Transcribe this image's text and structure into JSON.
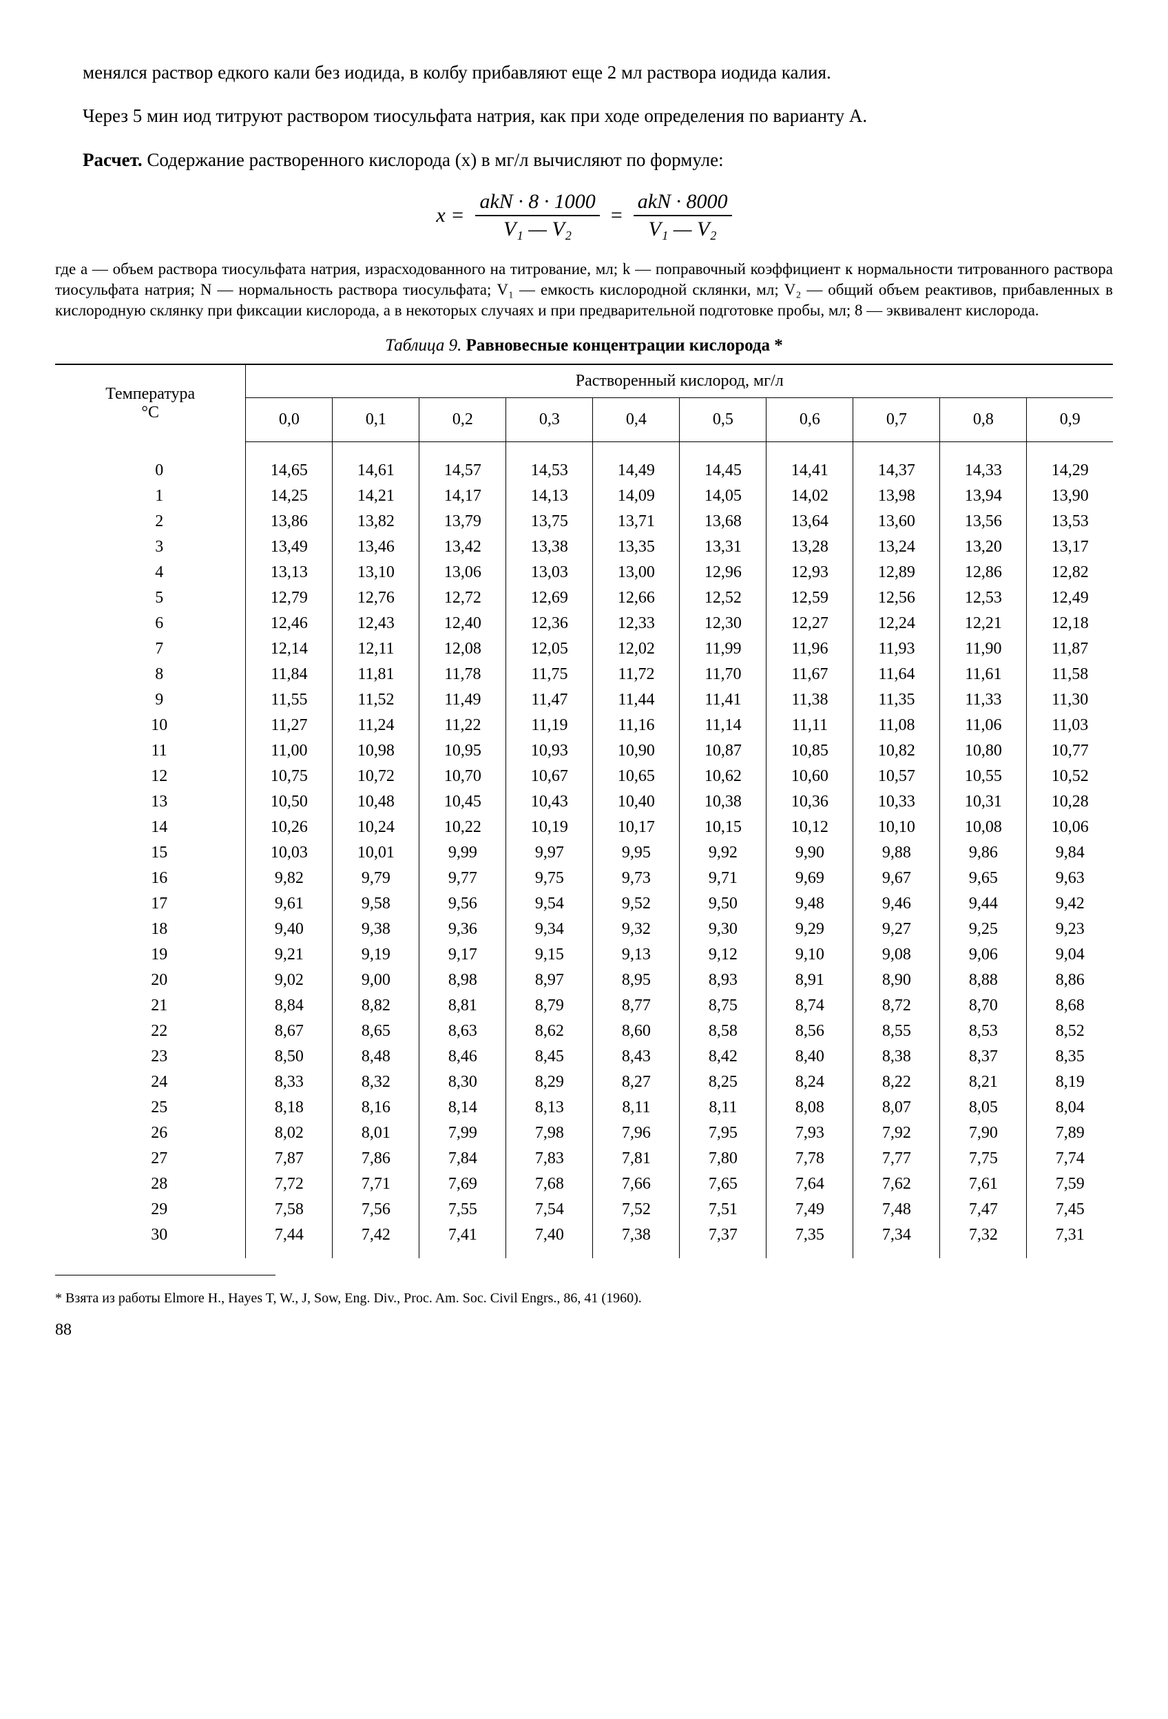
{
  "para1": "менялся раствор едкого кали без иодида, в колбу прибавляют еще 2 мл раствора иодида калия.",
  "para2": "Через 5 мин иод титруют раствором тиосульфата натрия, как при ходе определения по варианту А.",
  "para3_pre_bold": "Расчет.",
  "para3_rest": " Содержание растворенного кислорода (x) в мг/л вычисляют по формуле:",
  "formula": {
    "lhs": "x =",
    "frac1_num": "akN · 8 · 1000",
    "frac1_den": "V₁ — V₂",
    "eq": "=",
    "frac2_num": "akN · 8000",
    "frac2_den": "V₁ — V₂"
  },
  "defs": "где a — объем раствора тиосульфата натрия, израсходованного на титрование, мл; k — поправочный коэффициент к нормальности титрованного раствора тиосульфата натрия; N — нормальность раствора тиосульфата; V₁ — емкость кислородной склянки, мл; V₂ — общий объем реактивов, прибавленных в кислородную склянку при фиксации кислорода, а в некоторых случаях и при предварительной подготовке пробы, мл; 8 — эквивалент кислорода.",
  "table_title_prefix": "Таблица 9. ",
  "table_title_bold": "Равновесные концентрации кислорода *",
  "table": {
    "corner": "Температура\n°C",
    "span_header": "Растворенный кислород, мг/л",
    "cols": [
      "0,0",
      "0,1",
      "0,2",
      "0,3",
      "0,4",
      "0,5",
      "0,6",
      "0,7",
      "0,8",
      "0,9"
    ],
    "rows": [
      [
        "0",
        "14,65",
        "14,61",
        "14,57",
        "14,53",
        "14,49",
        "14,45",
        "14,41",
        "14,37",
        "14,33",
        "14,29"
      ],
      [
        "1",
        "14,25",
        "14,21",
        "14,17",
        "14,13",
        "14,09",
        "14,05",
        "14,02",
        "13,98",
        "13,94",
        "13,90"
      ],
      [
        "2",
        "13,86",
        "13,82",
        "13,79",
        "13,75",
        "13,71",
        "13,68",
        "13,64",
        "13,60",
        "13,56",
        "13,53"
      ],
      [
        "3",
        "13,49",
        "13,46",
        "13,42",
        "13,38",
        "13,35",
        "13,31",
        "13,28",
        "13,24",
        "13,20",
        "13,17"
      ],
      [
        "4",
        "13,13",
        "13,10",
        "13,06",
        "13,03",
        "13,00",
        "12,96",
        "12,93",
        "12,89",
        "12,86",
        "12,82"
      ],
      [
        "5",
        "12,79",
        "12,76",
        "12,72",
        "12,69",
        "12,66",
        "12,52",
        "12,59",
        "12,56",
        "12,53",
        "12,49"
      ],
      [
        "6",
        "12,46",
        "12,43",
        "12,40",
        "12,36",
        "12,33",
        "12,30",
        "12,27",
        "12,24",
        "12,21",
        "12,18"
      ],
      [
        "7",
        "12,14",
        "12,11",
        "12,08",
        "12,05",
        "12,02",
        "11,99",
        "11,96",
        "11,93",
        "11,90",
        "11,87"
      ],
      [
        "8",
        "11,84",
        "11,81",
        "11,78",
        "11,75",
        "11,72",
        "11,70",
        "11,67",
        "11,64",
        "11,61",
        "11,58"
      ],
      [
        "9",
        "11,55",
        "11,52",
        "11,49",
        "11,47",
        "11,44",
        "11,41",
        "11,38",
        "11,35",
        "11,33",
        "11,30"
      ],
      [
        "10",
        "11,27",
        "11,24",
        "11,22",
        "11,19",
        "11,16",
        "11,14",
        "11,11",
        "11,08",
        "11,06",
        "11,03"
      ],
      [
        "11",
        "11,00",
        "10,98",
        "10,95",
        "10,93",
        "10,90",
        "10,87",
        "10,85",
        "10,82",
        "10,80",
        "10,77"
      ],
      [
        "12",
        "10,75",
        "10,72",
        "10,70",
        "10,67",
        "10,65",
        "10,62",
        "10,60",
        "10,57",
        "10,55",
        "10,52"
      ],
      [
        "13",
        "10,50",
        "10,48",
        "10,45",
        "10,43",
        "10,40",
        "10,38",
        "10,36",
        "10,33",
        "10,31",
        "10,28"
      ],
      [
        "14",
        "10,26",
        "10,24",
        "10,22",
        "10,19",
        "10,17",
        "10,15",
        "10,12",
        "10,10",
        "10,08",
        "10,06"
      ],
      [
        "15",
        "10,03",
        "10,01",
        "9,99",
        "9,97",
        "9,95",
        "9,92",
        "9,90",
        "9,88",
        "9,86",
        "9,84"
      ],
      [
        "16",
        "9,82",
        "9,79",
        "9,77",
        "9,75",
        "9,73",
        "9,71",
        "9,69",
        "9,67",
        "9,65",
        "9,63"
      ],
      [
        "17",
        "9,61",
        "9,58",
        "9,56",
        "9,54",
        "9,52",
        "9,50",
        "9,48",
        "9,46",
        "9,44",
        "9,42"
      ],
      [
        "18",
        "9,40",
        "9,38",
        "9,36",
        "9,34",
        "9,32",
        "9,30",
        "9,29",
        "9,27",
        "9,25",
        "9,23"
      ],
      [
        "19",
        "9,21",
        "9,19",
        "9,17",
        "9,15",
        "9,13",
        "9,12",
        "9,10",
        "9,08",
        "9,06",
        "9,04"
      ],
      [
        "20",
        "9,02",
        "9,00",
        "8,98",
        "8,97",
        "8,95",
        "8,93",
        "8,91",
        "8,90",
        "8,88",
        "8,86"
      ],
      [
        "21",
        "8,84",
        "8,82",
        "8,81",
        "8,79",
        "8,77",
        "8,75",
        "8,74",
        "8,72",
        "8,70",
        "8,68"
      ],
      [
        "22",
        "8,67",
        "8,65",
        "8,63",
        "8,62",
        "8,60",
        "8,58",
        "8,56",
        "8,55",
        "8,53",
        "8,52"
      ],
      [
        "23",
        "8,50",
        "8,48",
        "8,46",
        "8,45",
        "8,43",
        "8,42",
        "8,40",
        "8,38",
        "8,37",
        "8,35"
      ],
      [
        "24",
        "8,33",
        "8,32",
        "8,30",
        "8,29",
        "8,27",
        "8,25",
        "8,24",
        "8,22",
        "8,21",
        "8,19"
      ],
      [
        "25",
        "8,18",
        "8,16",
        "8,14",
        "8,13",
        "8,11",
        "8,11",
        "8,08",
        "8,07",
        "8,05",
        "8,04"
      ],
      [
        "26",
        "8,02",
        "8,01",
        "7,99",
        "7,98",
        "7,96",
        "7,95",
        "7,93",
        "7,92",
        "7,90",
        "7,89"
      ],
      [
        "27",
        "7,87",
        "7,86",
        "7,84",
        "7,83",
        "7,81",
        "7,80",
        "7,78",
        "7,77",
        "7,75",
        "7,74"
      ],
      [
        "28",
        "7,72",
        "7,71",
        "7,69",
        "7,68",
        "7,66",
        "7,65",
        "7,64",
        "7,62",
        "7,61",
        "7,59"
      ],
      [
        "29",
        "7,58",
        "7,56",
        "7,55",
        "7,54",
        "7,52",
        "7,51",
        "7,49",
        "7,48",
        "7,47",
        "7,45"
      ],
      [
        "30",
        "7,44",
        "7,42",
        "7,41",
        "7,40",
        "7,38",
        "7,37",
        "7,35",
        "7,34",
        "7,32",
        "7,31"
      ]
    ]
  },
  "footnote": "* Взята из работы Elmore H., Hayes T, W., J, Sow, Eng. Div., Proc. Am. Soc. Civil Engrs., 86, 41 (1960).",
  "page_num": "88"
}
